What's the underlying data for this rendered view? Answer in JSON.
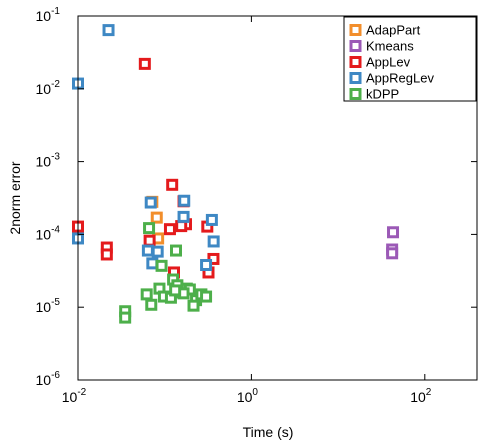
{
  "chart_data": {
    "type": "scatter",
    "title": "",
    "xlabel": "Time (s)",
    "ylabel": "2norm error",
    "xscale": "log",
    "yscale": "log",
    "xlim": [
      0.01,
      400
    ],
    "ylim": [
      1e-06,
      0.1
    ],
    "x_ticks": [
      {
        "value": 0.01,
        "base": "10",
        "exp": "-2"
      },
      {
        "value": 1,
        "base": "10",
        "exp": "0"
      },
      {
        "value": 100,
        "base": "10",
        "exp": "2"
      }
    ],
    "y_ticks": [
      {
        "value": 1e-06,
        "base": "10",
        "exp": "-6"
      },
      {
        "value": 1e-05,
        "base": "10",
        "exp": "-5"
      },
      {
        "value": 0.0001,
        "base": "10",
        "exp": "-4"
      },
      {
        "value": 0.001,
        "base": "10",
        "exp": "-3"
      },
      {
        "value": 0.01,
        "base": "10",
        "exp": "-2"
      },
      {
        "value": 0.1,
        "base": "10",
        "exp": "-1"
      }
    ],
    "legend_position": "top-right",
    "marker": "hollow-square",
    "grid": false,
    "series": [
      {
        "name": "AdapPart",
        "color": "#F28E2B",
        "points": [
          [
            0.072,
            0.00028
          ],
          [
            0.081,
            0.00017
          ],
          [
            0.084,
            8.8e-05
          ]
        ]
      },
      {
        "name": "Kmeans",
        "color": "#9B59B6",
        "points": [
          [
            43,
            0.000107
          ],
          [
            42,
            6.2e-05
          ],
          [
            42,
            5.5e-05
          ]
        ]
      },
      {
        "name": "AppLev",
        "color": "#E41A1C",
        "points": [
          [
            0.059,
            0.022
          ],
          [
            0.01,
            0.000128
          ],
          [
            0.0215,
            6.6e-05
          ],
          [
            0.0215,
            5.3e-05
          ],
          [
            0.122,
            0.00048
          ],
          [
            0.176,
            0.000138
          ],
          [
            0.31,
            0.000128
          ],
          [
            0.365,
            4.6e-05
          ],
          [
            0.32,
            3e-05
          ],
          [
            0.128,
            3e-05
          ],
          [
            0.067,
            8.2e-05
          ],
          [
            0.115,
            0.000118
          ],
          [
            0.165,
            0.000285
          ],
          [
            0.155,
            0.00013
          ]
        ]
      },
      {
        "name": "AppRegLev",
        "color": "#3E88C4",
        "points": [
          [
            0.01,
            0.0118
          ],
          [
            0.0225,
            0.064
          ],
          [
            0.01,
            8.8e-05
          ],
          [
            0.069,
            0.000274
          ],
          [
            0.168,
            0.00029
          ],
          [
            0.165,
            0.000174
          ],
          [
            0.35,
            0.000158
          ],
          [
            0.367,
            8e-05
          ],
          [
            0.3,
            3.8e-05
          ],
          [
            0.064,
            6e-05
          ],
          [
            0.072,
            4e-05
          ],
          [
            0.083,
            5.8e-05
          ]
        ]
      },
      {
        "name": "kDPP",
        "color": "#4DAF4A",
        "points": [
          [
            0.066,
            0.000122
          ],
          [
            0.135,
            6e-05
          ],
          [
            0.092,
            3.7e-05
          ],
          [
            0.062,
            1.5e-05
          ],
          [
            0.087,
            1.8e-05
          ],
          [
            0.07,
            1.08e-05
          ],
          [
            0.035,
            8.8e-06
          ],
          [
            0.035,
            7.2e-06
          ],
          [
            0.125,
            2.4e-05
          ],
          [
            0.14,
            2e-05
          ],
          [
            0.15,
            1.6e-05
          ],
          [
            0.18,
            1.8e-05
          ],
          [
            0.195,
            1.75e-05
          ],
          [
            0.098,
            1.4e-05
          ],
          [
            0.118,
            1.35e-05
          ],
          [
            0.165,
            1.55e-05
          ],
          [
            0.23,
            1.25e-05
          ],
          [
            0.215,
            1.05e-05
          ],
          [
            0.265,
            1.5e-05
          ],
          [
            0.3,
            1.4e-05
          ],
          [
            0.132,
            1.7e-05
          ]
        ]
      }
    ]
  }
}
